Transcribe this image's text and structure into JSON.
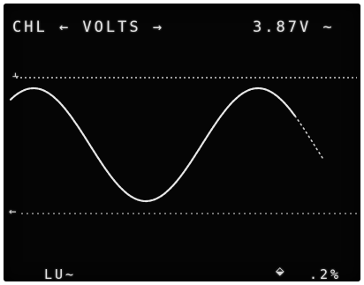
{
  "header": {
    "channel_label": "CHL ← VOLTS →",
    "reading": "3.87V ~"
  },
  "footer": {
    "scale_label": "LU~",
    "percent": ".2%"
  },
  "icons": {
    "trigger_marker": "trigger-level-marker-icon",
    "ground_marker": "ground-reference-arrow-icon",
    "memory": "memory-storage-icon"
  },
  "colors": {
    "screen": "#050505",
    "trace": "#e8e8e8",
    "text": "#e6e6e6"
  }
}
